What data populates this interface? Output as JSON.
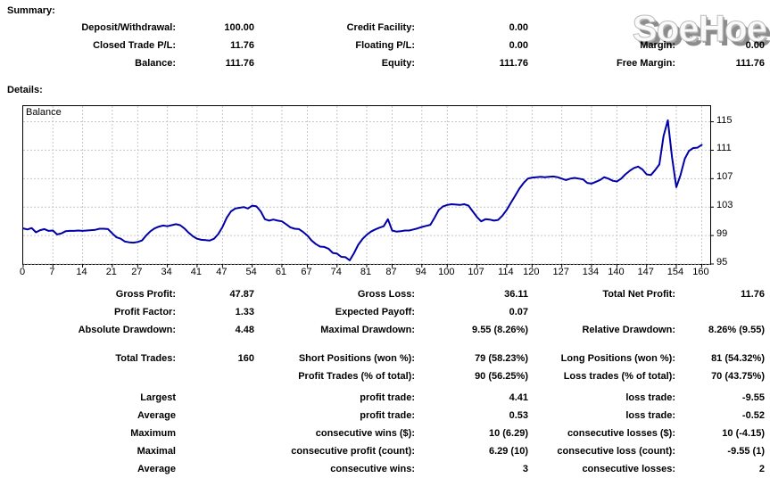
{
  "watermark": "SoeHoe",
  "summary": {
    "heading": "Summary:",
    "rows": [
      [
        "Deposit/Withdrawal:",
        "100.00",
        "Credit Facility:",
        "0.00",
        "",
        ""
      ],
      [
        "Closed Trade P/L:",
        "11.76",
        "Floating P/L:",
        "0.00",
        "Margin:",
        "0.00"
      ],
      [
        "Balance:",
        "111.76",
        "Equity:",
        "111.76",
        "Free Margin:",
        "111.76"
      ]
    ]
  },
  "details": {
    "heading": "Details:",
    "rows": [
      [
        "Gross Profit:",
        "47.87",
        "Gross Loss:",
        "36.11",
        "Total Net Profit:",
        "11.76"
      ],
      [
        "Profit Factor:",
        "1.33",
        "Expected Payoff:",
        "0.07",
        "",
        ""
      ],
      [
        "Absolute Drawdown:",
        "4.48",
        "Maximal Drawdown:",
        "9.55 (8.26%)",
        "Relative Drawdown:",
        "8.26% (9.55)"
      ],
      {
        "gap": 12
      },
      [
        "Total Trades:",
        "160",
        "Short Positions (won %):",
        "79 (58.23%)",
        "Long Positions (won %):",
        "81 (54.32%)"
      ],
      [
        "",
        "",
        "Profit Trades (% of total):",
        "90 (56.25%)",
        "Loss trades (% of total):",
        "70 (43.75%)"
      ],
      {
        "gap": 4
      },
      [
        "Largest",
        "",
        "profit trade:",
        "4.41",
        "loss trade:",
        "-9.55"
      ],
      [
        "Average",
        "",
        "profit trade:",
        "0.53",
        "loss trade:",
        "-0.52"
      ],
      [
        "Maximum",
        "",
        "consecutive wins ($):",
        "10 (6.29)",
        "consecutive losses ($):",
        "10 (-4.15)"
      ],
      [
        "Maximal",
        "",
        "consecutive profit (count):",
        "6.29 (10)",
        "consecutive loss (count):",
        "-9.55 (1)"
      ],
      [
        "Average",
        "",
        "consecutive wins:",
        "3",
        "consecutive losses:",
        "2"
      ]
    ]
  },
  "chart_data": {
    "type": "line",
    "title": "Balance",
    "xlabel": "",
    "ylabel": "",
    "xlim": [
      0,
      162
    ],
    "ylim": [
      95,
      117.2
    ],
    "x_ticks": [
      0,
      7,
      14,
      21,
      27,
      34,
      41,
      47,
      54,
      61,
      67,
      74,
      81,
      87,
      94,
      100,
      107,
      114,
      120,
      127,
      134,
      140,
      147,
      154,
      160
    ],
    "y_ticks": [
      95,
      99,
      103,
      107,
      111,
      115
    ],
    "grid": true,
    "line_color": "#0000a8",
    "grid_color": "#c6c6c6",
    "series": [
      {
        "name": "Balance",
        "values": [
          100.0,
          99.85,
          100.05,
          99.45,
          99.75,
          99.9,
          99.65,
          99.7,
          99.15,
          99.3,
          99.6,
          99.65,
          99.65,
          99.7,
          99.65,
          99.7,
          99.75,
          99.8,
          99.95,
          99.95,
          99.9,
          99.3,
          98.75,
          98.55,
          98.15,
          98.05,
          98.0,
          98.1,
          98.3,
          99.0,
          99.6,
          100.0,
          100.25,
          100.4,
          100.3,
          100.45,
          100.6,
          100.45,
          100.0,
          99.4,
          98.9,
          98.55,
          98.4,
          98.35,
          98.3,
          98.55,
          99.2,
          100.2,
          101.5,
          102.4,
          102.8,
          102.9,
          103.0,
          102.8,
          103.2,
          103.1,
          102.4,
          101.3,
          101.1,
          101.25,
          101.1,
          101.0,
          100.6,
          100.15,
          99.95,
          99.9,
          99.5,
          99.0,
          98.3,
          97.8,
          97.45,
          97.4,
          97.15,
          96.55,
          96.45,
          96.0,
          95.95,
          95.52,
          96.5,
          97.7,
          98.5,
          99.1,
          99.55,
          99.85,
          100.1,
          100.3,
          101.3,
          99.7,
          99.55,
          99.6,
          99.7,
          99.7,
          99.85,
          100.0,
          100.2,
          100.35,
          100.5,
          101.5,
          102.6,
          103.1,
          103.3,
          103.4,
          103.35,
          103.3,
          103.4,
          103.2,
          102.4,
          101.6,
          101.0,
          101.3,
          101.25,
          101.1,
          101.2,
          101.8,
          102.6,
          103.6,
          104.6,
          105.6,
          106.4,
          107.0,
          107.15,
          107.2,
          107.25,
          107.2,
          107.25,
          107.3,
          107.2,
          107.0,
          106.8,
          107.0,
          107.1,
          107.0,
          106.9,
          106.4,
          106.3,
          106.55,
          106.8,
          107.2,
          107.0,
          106.7,
          106.6,
          107.0,
          107.6,
          108.1,
          108.5,
          108.7,
          108.3,
          107.6,
          107.5,
          108.2,
          109.0,
          113.0,
          115.2,
          110.0,
          105.8,
          107.5,
          109.8,
          110.9,
          111.3,
          111.35,
          111.76
        ]
      }
    ]
  }
}
